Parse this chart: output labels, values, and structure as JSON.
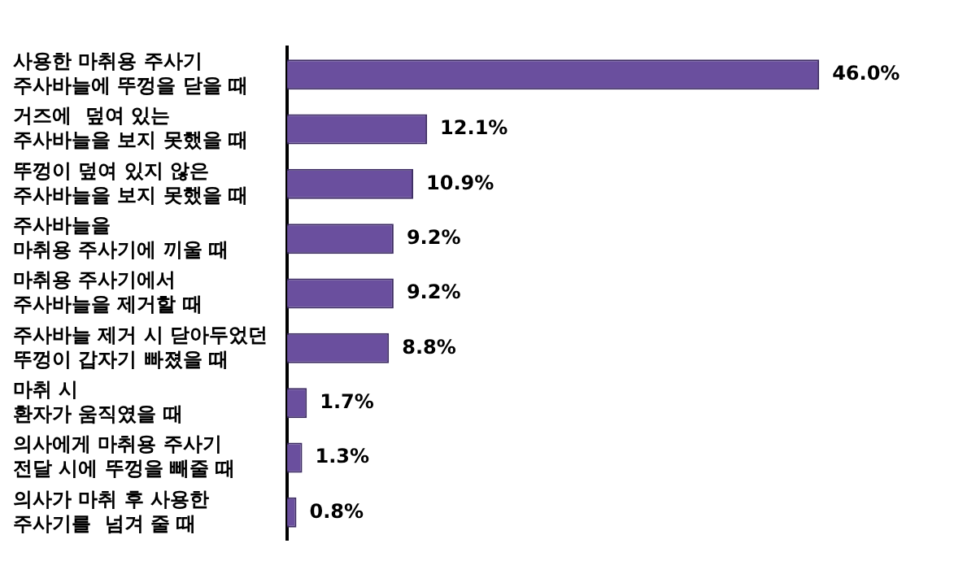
{
  "chart_data": {
    "type": "bar",
    "orientation": "horizontal",
    "categories": [
      "사용한 마취용 주사기\n주사바늘에 뚜껑을 닫을 때",
      "거즈에  덮여 있는\n주사바늘을 보지 못했을 때",
      "뚜껑이 덮여 있지 않은\n주사바늘을 보지 못했을 때",
      "주사바늘을\n마취용 주사기에 끼울 때",
      "마취용 주사기에서\n주사바늘을 제거할 때",
      "주사바늘 제거 시 닫아두었던\n뚜껑이 갑자기 빠졌을 때",
      "마취 시\n환자가 움직였을 때",
      "의사에게 마취용 주사기\n전달 시에 뚜껑을 빼줄 때",
      "의사가 마취 후 사용한\n주사기를  넘겨 줄 때"
    ],
    "values": [
      46.0,
      12.1,
      10.9,
      9.2,
      9.2,
      8.8,
      1.7,
      1.3,
      0.8
    ],
    "value_labels": [
      "46.0%",
      "12.1%",
      "10.9%",
      "9.2%",
      "9.2%",
      "8.8%",
      "1.7%",
      "1.3%",
      "0.8%"
    ],
    "color": "#6a4f9e"
  }
}
